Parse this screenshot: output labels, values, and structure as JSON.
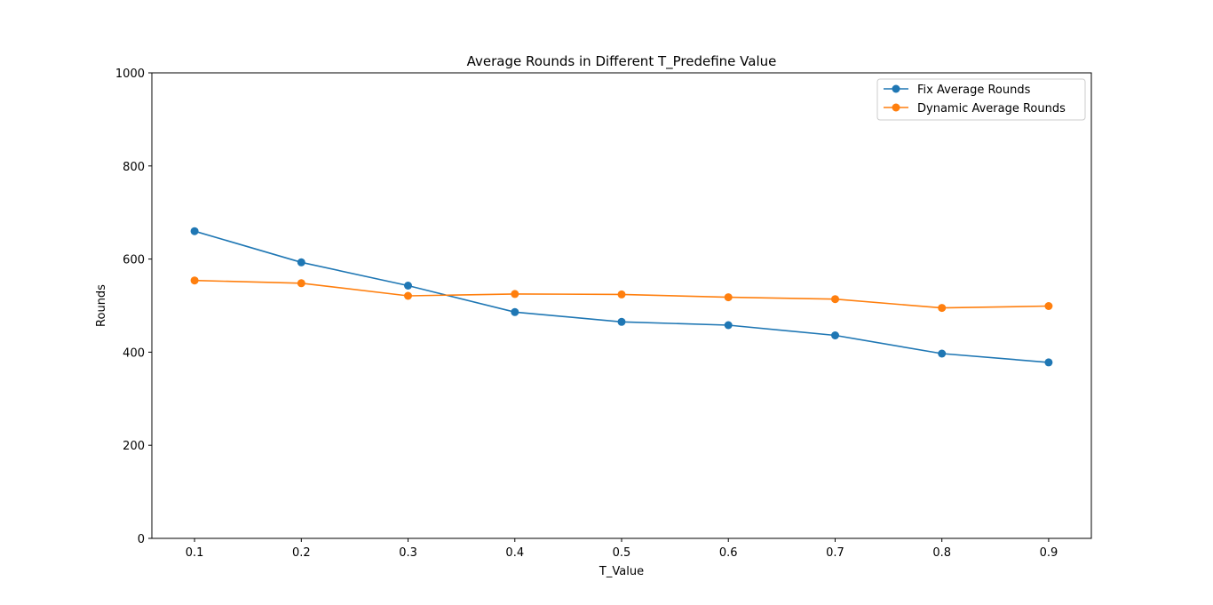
{
  "chart_data": {
    "type": "line",
    "title": "Average Rounds in Different T_Predefine Value",
    "xlabel": "T_Value",
    "ylabel": "Rounds",
    "x": [
      0.1,
      0.2,
      0.3,
      0.4,
      0.5,
      0.6,
      0.7,
      0.8,
      0.9
    ],
    "x_tick_labels": [
      "0.1",
      "0.2",
      "0.3",
      "0.4",
      "0.5",
      "0.6",
      "0.7",
      "0.8",
      "0.9"
    ],
    "y_ticks": [
      0,
      200,
      400,
      600,
      800,
      1000
    ],
    "y_tick_labels": [
      "0",
      "200",
      "400",
      "600",
      "800",
      "1000"
    ],
    "xlim": [
      0.06,
      0.94
    ],
    "ylim": [
      0,
      1000
    ],
    "grid": false,
    "legend_position": "top-right",
    "series": [
      {
        "name": "Fix Average Rounds",
        "color": "#1f77b4",
        "marker": "circle",
        "values": [
          660,
          593,
          543,
          486,
          465,
          458,
          436,
          397,
          378
        ]
      },
      {
        "name": "Dynamic Average Rounds",
        "color": "#ff7f0e",
        "marker": "circle",
        "values": [
          554,
          548,
          521,
          525,
          524,
          518,
          514,
          495,
          499
        ]
      }
    ]
  }
}
